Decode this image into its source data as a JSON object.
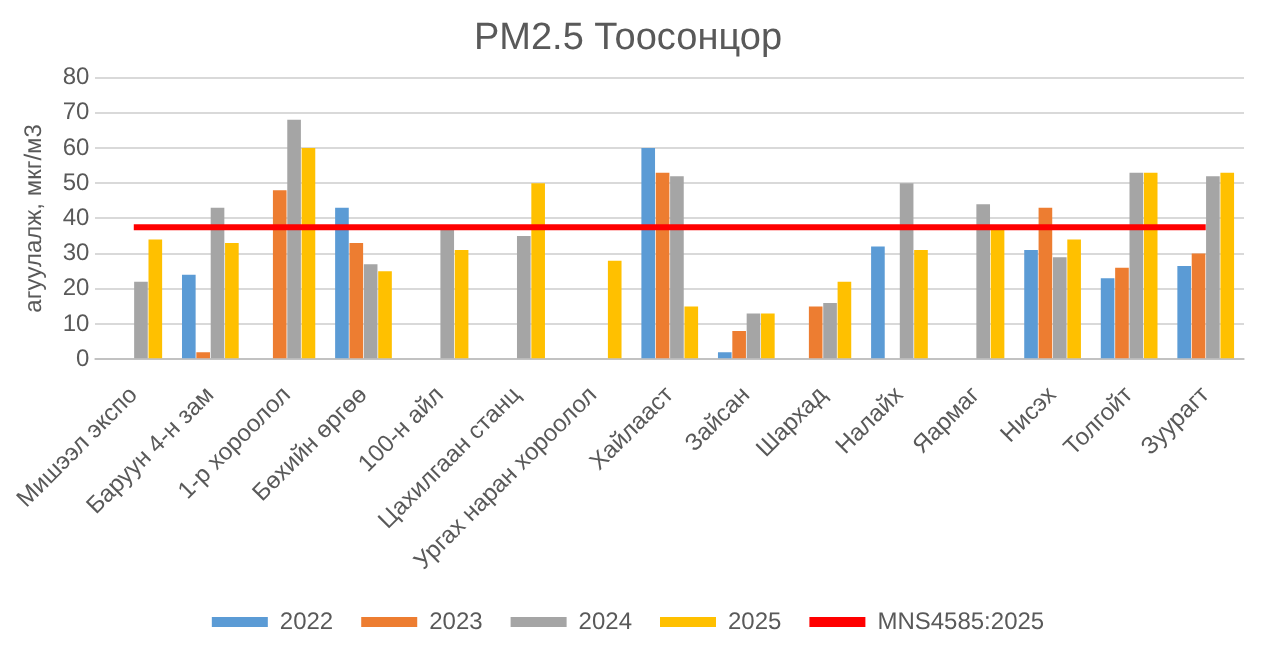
{
  "chart_data": {
    "type": "bar",
    "title": "PM2.5 Тоосонцор",
    "ylabel": "агуулалж, мкг/м3",
    "categories": [
      "Мишээл экспо",
      "Баруун 4-н зам",
      "1-р хороолол",
      "Бөхийн өргөө",
      "100-н айл",
      "Цахилгаан станц",
      "Ургах наран хороолол",
      "Хайлааст",
      "Зайсан",
      "Шархад",
      "Налайх",
      "Яармаг",
      "Нисэх",
      "Толгойт",
      "Зуурагт"
    ],
    "series": [
      {
        "name": "2022",
        "color": "#5b9bd5",
        "values": [
          null,
          24,
          null,
          43,
          null,
          null,
          null,
          60,
          2,
          null,
          32,
          null,
          31,
          23,
          26.5
        ]
      },
      {
        "name": "2023",
        "color": "#ed7d31",
        "values": [
          null,
          2,
          48,
          33,
          null,
          null,
          null,
          53,
          8,
          15,
          null,
          null,
          43,
          26,
          30
        ]
      },
      {
        "name": "2024",
        "color": "#a5a5a5",
        "values": [
          22,
          43,
          68,
          27,
          37,
          35,
          null,
          52,
          13,
          16,
          50,
          44,
          29,
          53,
          52
        ]
      },
      {
        "name": "2025",
        "color": "#ffc000",
        "values": [
          34,
          33,
          60,
          25,
          31,
          50,
          28,
          15,
          13,
          22,
          31,
          38,
          34,
          53,
          53
        ]
      },
      {
        "name": "MNS4585:2025",
        "type": "line",
        "color": "#ff0000",
        "values": [
          37.5,
          37.5,
          37.5,
          37.5,
          37.5,
          37.5,
          37.5,
          37.5,
          37.5,
          37.5,
          37.5,
          37.5,
          37.5,
          37.5,
          37.5
        ]
      }
    ],
    "marker": "none",
    "ylim": [
      0,
      80
    ],
    "yticks": [
      0,
      10,
      20,
      30,
      40,
      50,
      60,
      70,
      80
    ],
    "grid": "y",
    "legend": "bottom"
  }
}
